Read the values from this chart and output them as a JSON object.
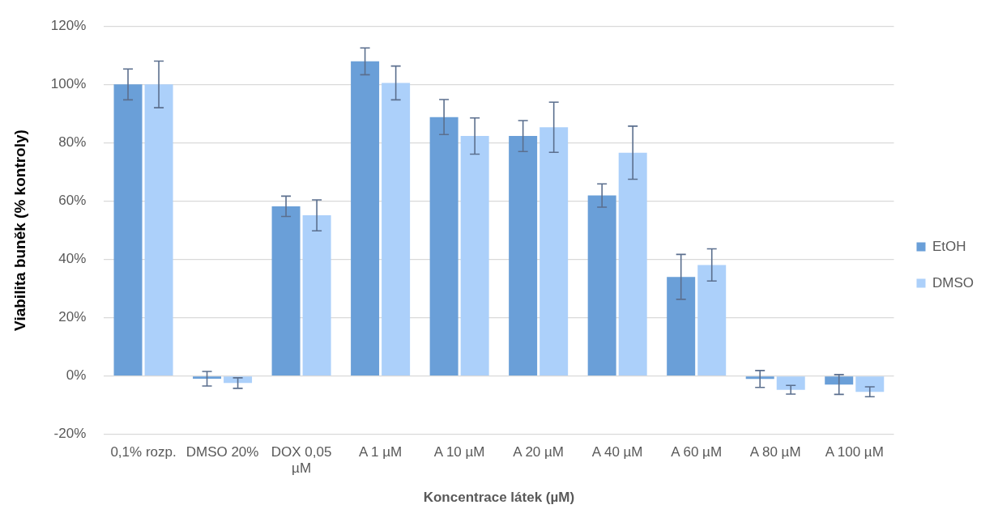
{
  "chart_data": {
    "type": "bar",
    "xlabel": "Koncentrace látek (µM)",
    "ylabel": "Viabilita buněk (% kontroly)",
    "categories": [
      "0,1% rozp.",
      "DMSO 20%",
      "DOX 0,05 µM",
      "A 1 µM",
      "A 10 µM",
      "A 20 µM",
      "A 40 µM",
      "A 60 µM",
      "A 80 µM",
      "A 100 µM"
    ],
    "series": [
      {
        "name": "EtOH",
        "color": "#6a9fd8",
        "values": [
          100,
          -0.9,
          58.2,
          107.9,
          88.8,
          82.3,
          61.9,
          34.0,
          -1.0,
          -2.9
        ],
        "errors": [
          5.3,
          2.5,
          3.5,
          4.6,
          6.0,
          5.3,
          4.0,
          7.7,
          2.9,
          3.4
        ]
      },
      {
        "name": "DMSO",
        "color": "#acd0fa",
        "values": [
          100,
          -2.4,
          55.1,
          100.5,
          82.3,
          85.3,
          76.6,
          38.1,
          -4.7,
          -5.4
        ],
        "errors": [
          8.0,
          1.8,
          5.3,
          5.8,
          6.2,
          8.6,
          9.1,
          5.5,
          1.5,
          1.7
        ]
      }
    ],
    "ylim": [
      -20,
      120
    ],
    "yticks": [
      {
        "value": -20,
        "label": "-20%"
      },
      {
        "value": 0,
        "label": "0%"
      },
      {
        "value": 20,
        "label": "20%"
      },
      {
        "value": 40,
        "label": "40%"
      },
      {
        "value": 60,
        "label": "60%"
      },
      {
        "value": 80,
        "label": "80%"
      },
      {
        "value": 100,
        "label": "100%"
      },
      {
        "value": 120,
        "label": "120%"
      }
    ],
    "grid": "y",
    "legend": "right"
  }
}
